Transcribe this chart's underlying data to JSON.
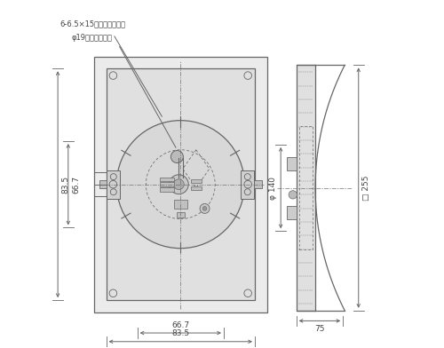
{
  "bg_color": "#ffffff",
  "line_color": "#666666",
  "text_color": "#444444",
  "front": {
    "ox": 0.13,
    "oy": 0.1,
    "ow": 0.5,
    "oh": 0.74,
    "ix_off": 0.035,
    "iy_off": 0.035,
    "cr": 0.185,
    "dashed_r": 0.1,
    "diamond_r": 0.055
  },
  "side": {
    "bx": 0.715,
    "by": 0.105,
    "bw": 0.055,
    "bh": 0.71,
    "dome_extra": 0.085
  },
  "annotations": {
    "label1": "6-6.5×15長穴（取付用）",
    "label2": "φ19穴（電源用）",
    "dim_667_bot": "66.7",
    "dim_835_bot": "83.5",
    "dim_667_left": "66.7",
    "dim_835_left": "83.5",
    "dim_140": "φ 140",
    "dim_255": "□ 255",
    "dim_75": "75"
  }
}
